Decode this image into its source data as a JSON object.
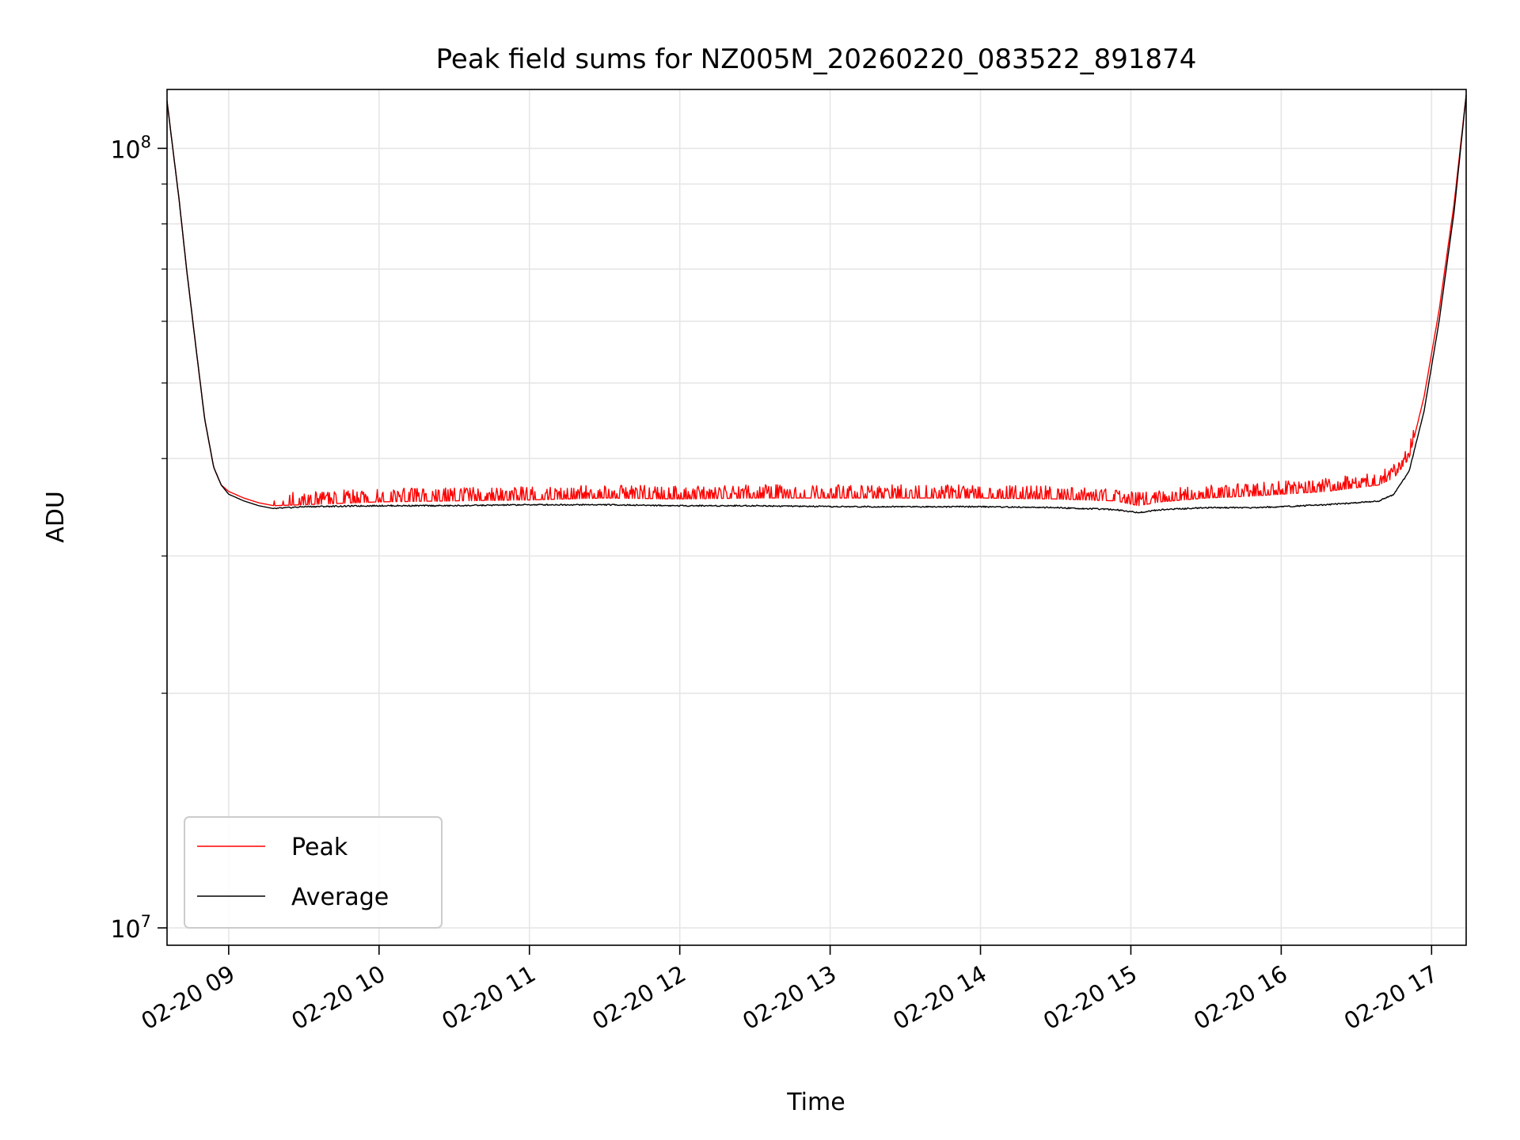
{
  "chart_data": {
    "type": "line",
    "title": "Peak field sums for NZ005M_20260220_083522_891874",
    "xlabel": "Time",
    "ylabel": "ADU",
    "yscale": "log",
    "ylim": [
      9500000,
      119000000
    ],
    "xlim_hours": [
      8.59,
      17.23
    ],
    "x_ticks": [
      {
        "hour": 9,
        "label": "02-20 09"
      },
      {
        "hour": 10,
        "label": "02-20 10"
      },
      {
        "hour": 11,
        "label": "02-20 11"
      },
      {
        "hour": 12,
        "label": "02-20 12"
      },
      {
        "hour": 13,
        "label": "02-20 13"
      },
      {
        "hour": 14,
        "label": "02-20 14"
      },
      {
        "hour": 15,
        "label": "02-20 15"
      },
      {
        "hour": 16,
        "label": "02-20 16"
      },
      {
        "hour": 17,
        "label": "02-20 17"
      }
    ],
    "y_ticks": [
      {
        "value": 10000000,
        "base": "10",
        "exp": "7"
      },
      {
        "value": 100000000,
        "base": "10",
        "exp": "8"
      }
    ],
    "grid": true,
    "legend_position": "lower-left",
    "series": [
      {
        "name": "Peak",
        "color": "#ff0000",
        "x_hours": [
          8.59,
          8.62,
          8.67,
          8.72,
          8.78,
          8.84,
          8.9,
          8.95,
          9.0,
          9.1,
          9.2,
          9.3,
          9.5,
          10.0,
          10.5,
          11.0,
          11.5,
          12.0,
          12.5,
          13.0,
          13.5,
          14.0,
          14.5,
          14.9,
          15.05,
          15.2,
          15.5,
          15.8,
          16.0,
          16.3,
          16.5,
          16.65,
          16.75,
          16.85,
          16.95,
          17.05,
          17.15,
          17.23
        ],
        "values": [
          115000000,
          103000000,
          86000000,
          70000000,
          56000000,
          45000000,
          39000000,
          37000000,
          36300000,
          35600000,
          35100000,
          34800000,
          34900000,
          35200000,
          35300000,
          35400000,
          35600000,
          35500000,
          35600000,
          35600000,
          35600000,
          35600000,
          35500000,
          35300000,
          34800000,
          35200000,
          35600000,
          35800000,
          36000000,
          36300000,
          36700000,
          37000000,
          37800000,
          40000000,
          48000000,
          62000000,
          85000000,
          117000000
        ]
      },
      {
        "name": "Average",
        "color": "#000000",
        "x_hours": [
          8.59,
          8.62,
          8.67,
          8.72,
          8.78,
          8.84,
          8.9,
          8.95,
          9.0,
          9.1,
          9.2,
          9.3,
          9.5,
          10.0,
          10.5,
          11.0,
          11.5,
          12.0,
          12.5,
          13.0,
          13.5,
          14.0,
          14.5,
          14.9,
          15.05,
          15.2,
          15.5,
          15.8,
          16.0,
          16.3,
          16.5,
          16.65,
          16.75,
          16.85,
          16.95,
          17.05,
          17.15,
          17.23
        ],
        "values": [
          115000000,
          103000000,
          86000000,
          70000000,
          56000000,
          45000000,
          39000000,
          37000000,
          36000000,
          35300000,
          34800000,
          34500000,
          34700000,
          34800000,
          34800000,
          34900000,
          34900000,
          34800000,
          34800000,
          34700000,
          34700000,
          34700000,
          34600000,
          34400000,
          34100000,
          34400000,
          34600000,
          34600000,
          34700000,
          34900000,
          35100000,
          35300000,
          36000000,
          38500000,
          46000000,
          60000000,
          83000000,
          117000000
        ]
      }
    ]
  }
}
